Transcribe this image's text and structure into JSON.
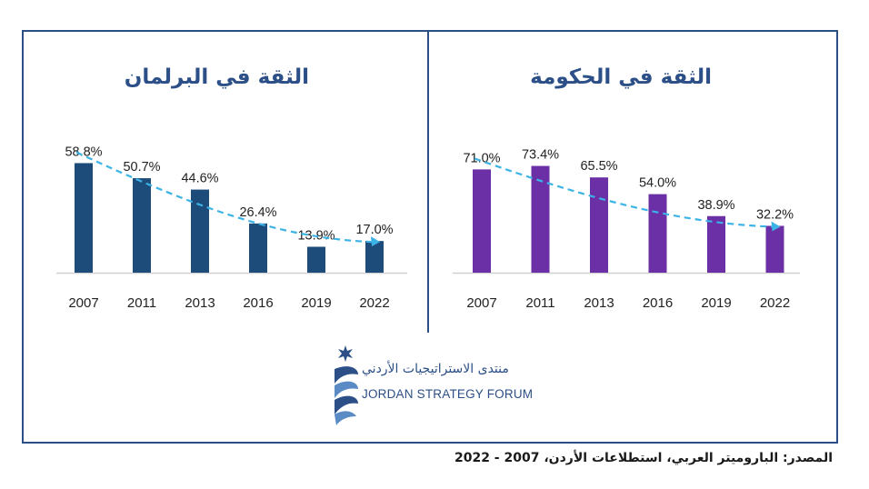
{
  "chart_data": [
    {
      "type": "bar",
      "title": "الثقة في البرلمان",
      "categories": [
        "2007",
        "2011",
        "2013",
        "2016",
        "2019",
        "2022"
      ],
      "values": [
        58.8,
        50.7,
        44.6,
        26.4,
        13.9,
        17.0
      ],
      "value_labels": [
        "58.8%",
        "50.7%",
        "44.6%",
        "26.4%",
        "13.9%",
        "17.0%"
      ],
      "color": "#1d4b7a",
      "trend_color": "#3cb3e6",
      "trend_line": "dashed-arrow",
      "ylim": [
        0,
        100
      ]
    },
    {
      "type": "bar",
      "title": "الثقة في الحكومة",
      "categories": [
        "2007",
        "2011",
        "2013",
        "2016",
        "2019",
        "2022"
      ],
      "values": [
        71.0,
        73.4,
        65.5,
        54.0,
        38.9,
        32.2
      ],
      "value_labels": [
        "71.0%",
        "73.4%",
        "65.5%",
        "54.0%",
        "38.9%",
        "32.2%"
      ],
      "color": "#6b2fa6",
      "trend_color": "#3cb3e6",
      "trend_line": "dashed-arrow",
      "ylim": [
        0,
        100
      ]
    }
  ],
  "logo": {
    "arabic_name": "منتدى الاستراتيجيات الأردني",
    "english_name": "JORDAN STRATEGY FORUM",
    "icon": "star-ribbon-logo-icon"
  },
  "source": "المصدر: الباروميتر العربي، استطلاعات الأردن، 2007 - 2022",
  "colors": {
    "frame": "#2b4f86",
    "title": "#2b4f86"
  }
}
